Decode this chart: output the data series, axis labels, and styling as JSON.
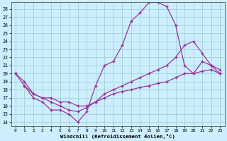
{
  "xlabel": "Windchill (Refroidissement éolien,°C)",
  "bg_color": "#cceeff",
  "grid_color": "#99cccc",
  "line_color": "#993399",
  "xlim": [
    -0.5,
    23.5
  ],
  "ylim": [
    13.5,
    28.8
  ],
  "yticks": [
    14,
    15,
    16,
    17,
    18,
    19,
    20,
    21,
    22,
    23,
    24,
    25,
    26,
    27,
    28
  ],
  "xticks": [
    0,
    1,
    2,
    3,
    4,
    5,
    6,
    7,
    8,
    9,
    10,
    11,
    12,
    13,
    14,
    15,
    16,
    17,
    18,
    19,
    20,
    21,
    22,
    23
  ],
  "line1_x": [
    0,
    1,
    2,
    3,
    4,
    5,
    6,
    7,
    8,
    9,
    10,
    11,
    12,
    13,
    14,
    15,
    16,
    17,
    18,
    19,
    20,
    21,
    22,
    23
  ],
  "line1_y": [
    20,
    18.5,
    17,
    16.5,
    15.5,
    15.5,
    15,
    14,
    15.3,
    18.5,
    21.0,
    21.5,
    23.5,
    26.5,
    27.5,
    28.8,
    28.8,
    28.3,
    26.0,
    21.0,
    20.0,
    21.5,
    21.0,
    20.5
  ],
  "line2_x": [
    0,
    1,
    2,
    3,
    4,
    5,
    6,
    7,
    8,
    9,
    10,
    11,
    12,
    13,
    14,
    15,
    16,
    17,
    18,
    19,
    20,
    21,
    22,
    23
  ],
  "line2_y": [
    20,
    19,
    17.5,
    17,
    16.5,
    16,
    15.5,
    15.3,
    15.8,
    16.5,
    17.5,
    18.0,
    18.5,
    19.0,
    19.5,
    20.0,
    20.5,
    21.0,
    22.0,
    23.5,
    24.0,
    22.5,
    21.0,
    20.0
  ],
  "line3_x": [
    1,
    2,
    3,
    4,
    5,
    6,
    7,
    8,
    9,
    10,
    11,
    12,
    13,
    14,
    15,
    16,
    17,
    18,
    19,
    20,
    21,
    22,
    23
  ],
  "line3_y": [
    18.5,
    17.5,
    17,
    17,
    16.5,
    16.5,
    16.0,
    16.0,
    16.5,
    17.0,
    17.5,
    17.8,
    18.0,
    18.3,
    18.5,
    18.8,
    19.0,
    19.5,
    20.0,
    20.0,
    20.3,
    20.5,
    20.0
  ]
}
